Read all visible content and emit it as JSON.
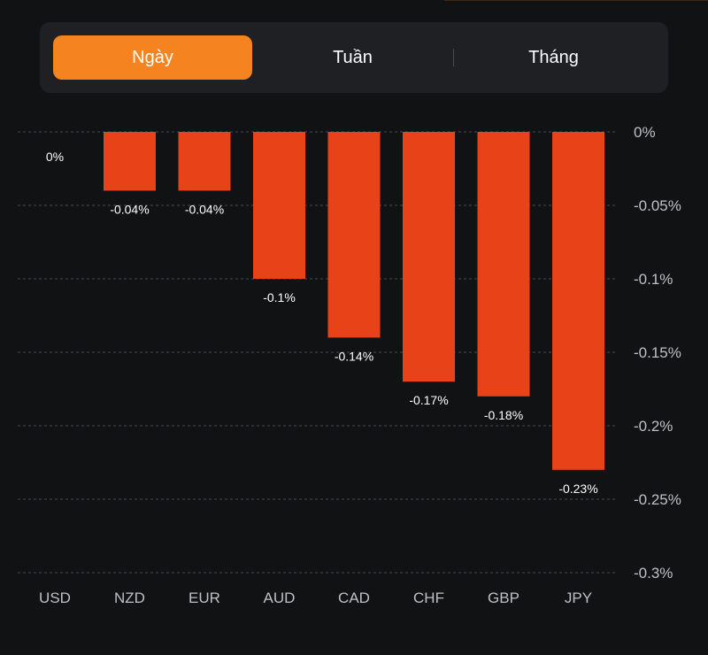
{
  "tabs": [
    {
      "label": "Ngày",
      "active": true
    },
    {
      "label": "Tuần",
      "active": false
    },
    {
      "label": "Tháng",
      "active": false
    }
  ],
  "colors": {
    "accent": "#f5831f",
    "bar": "#e84219",
    "background": "#111214",
    "panel": "#1f2023"
  },
  "chart_data": {
    "type": "bar",
    "categories": [
      "USD",
      "NZD",
      "EUR",
      "AUD",
      "CAD",
      "CHF",
      "GBP",
      "JPY"
    ],
    "values": [
      0,
      -0.04,
      -0.04,
      -0.1,
      -0.14,
      -0.17,
      -0.18,
      -0.23
    ],
    "value_labels": [
      "0%",
      "-0.04%",
      "-0.04%",
      "-0.1%",
      "-0.14%",
      "-0.17%",
      "-0.18%",
      "-0.23%"
    ],
    "yticks": [
      0,
      -0.05,
      -0.1,
      -0.15,
      -0.2,
      -0.25,
      -0.3
    ],
    "ytick_labels": [
      "0%",
      "-0.05%",
      "-0.1%",
      "-0.15%",
      "-0.2%",
      "-0.25%",
      "-0.3%"
    ],
    "ylim": [
      -0.3,
      0
    ],
    "yaxis_position": "right",
    "grid": "dashed horizontal"
  }
}
